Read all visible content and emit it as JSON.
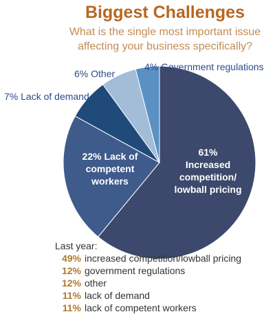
{
  "chart_data": {
    "type": "pie",
    "title": "Biggest Challenges",
    "subtitle": "What is the single most important issue affecting your business specifically?",
    "categories": [
      "Increased competition/ lowball pricing",
      "Lack of competent workers",
      "Lack of demand",
      "Other",
      "Government regulations"
    ],
    "values": [
      61,
      22,
      7,
      6,
      4
    ],
    "value_labels": [
      "61%",
      "22%",
      "7%",
      "6%",
      "4%"
    ],
    "colors": [
      "#3c496c",
      "#3e5b8b",
      "#1f4a79",
      "#a3bcd8",
      "#5b90c2"
    ]
  },
  "last_year": {
    "title": "Last year:",
    "percents": [
      "49%",
      "12%",
      "12%",
      "11%",
      "11%"
    ],
    "labels": [
      "increased competition/lowball pricing",
      "government regulations",
      "other",
      "lack of demand",
      "lack of competent workers"
    ]
  }
}
